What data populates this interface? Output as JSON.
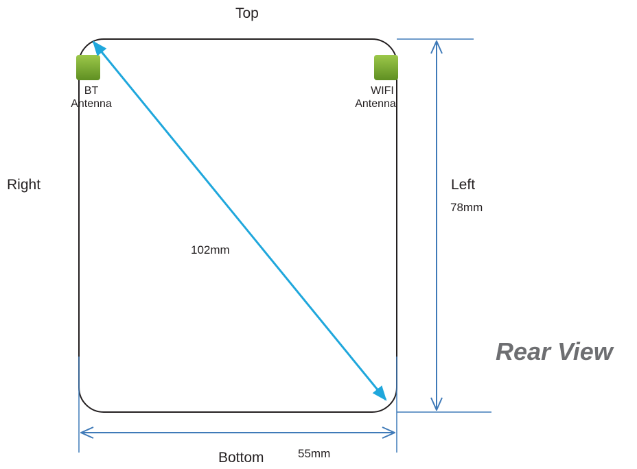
{
  "labels": {
    "top": "Top",
    "bottom": "Bottom",
    "left": "Left",
    "right": "Right",
    "view": "Rear View"
  },
  "dimensions": {
    "diagonal": "102mm",
    "height": "78mm",
    "width": "55mm"
  },
  "antennas": [
    {
      "line1": "BT",
      "line2": "Antenna"
    },
    {
      "line1": "WIFI",
      "line2": "Antenna"
    }
  ],
  "colors": {
    "outline": "#231f20",
    "dimension_line": "#3f7ab8",
    "diagonal_arrow": "#1fa7dc",
    "antenna_green": "#7cae32",
    "view_label": "#6d6e71"
  }
}
